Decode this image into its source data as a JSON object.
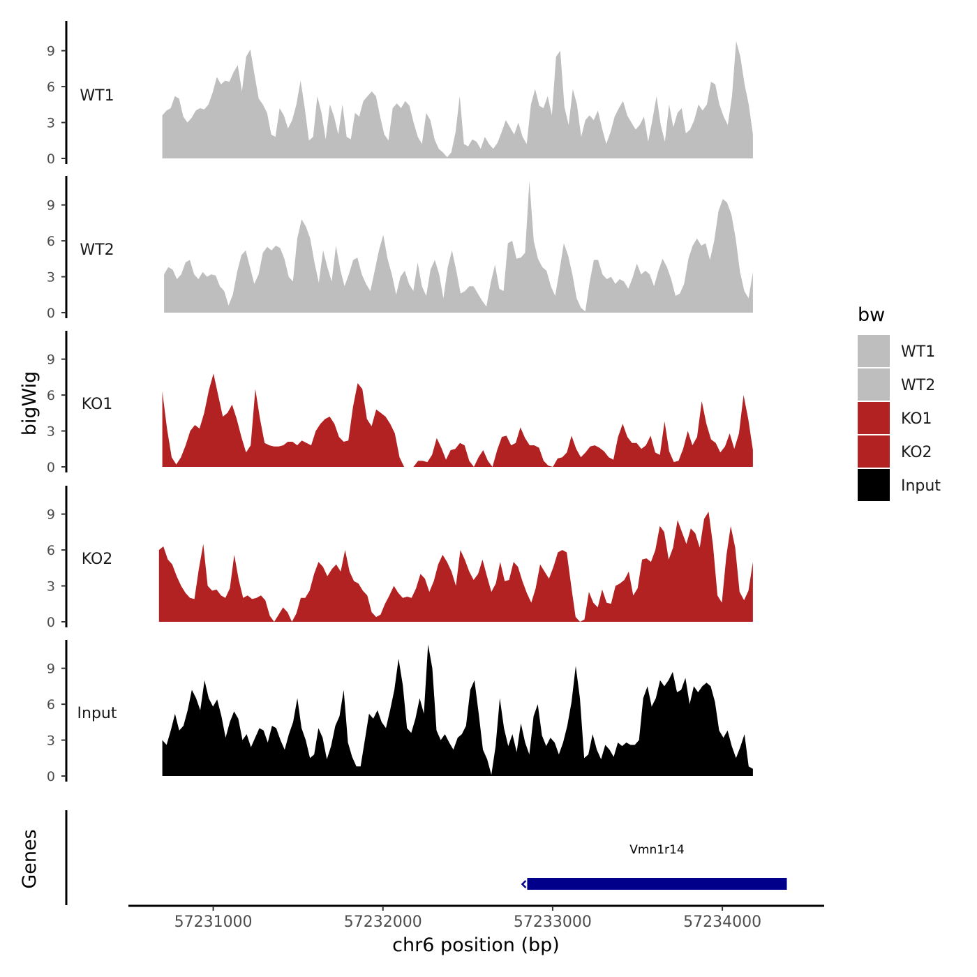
{
  "chart_data": {
    "type": "area",
    "x_title": "chr6 position (bp)",
    "y_title": "bigWig",
    "genes_title": "Genes",
    "xlim": [
      57230500,
      57234600
    ],
    "ylim": [
      0,
      11.5
    ],
    "y_ticks": [
      0,
      3,
      6,
      9
    ],
    "x_ticks": [
      {
        "value": 57231000,
        "label": "57231000"
      },
      {
        "value": 57232000,
        "label": "57232000"
      },
      {
        "value": 57233000,
        "label": "57233000"
      },
      {
        "value": 57234000,
        "label": "57234000"
      }
    ],
    "legend": {
      "title": "bw",
      "entries": [
        {
          "label": "WT1",
          "color": "#bebebe"
        },
        {
          "label": "WT2",
          "color": "#bebebe"
        },
        {
          "label": "KO1",
          "color": "#b22222"
        },
        {
          "label": "KO2",
          "color": "#b22222"
        },
        {
          "label": "Input",
          "color": "#000000"
        }
      ]
    },
    "series": [
      {
        "name": "WT1",
        "color": "#bebebe",
        "x_start": 57230700,
        "x_end": 57234180,
        "values": [
          3.6,
          4,
          4.2,
          5.2,
          5,
          3.5,
          3,
          3.4,
          4,
          4.2,
          4.1,
          4.5,
          5.5,
          6.8,
          6.2,
          6.5,
          6.4,
          7.2,
          7.8,
          5.6,
          8.5,
          9.1,
          7,
          5,
          4.5,
          3.8,
          2,
          1.8,
          4.2,
          3.6,
          2.5,
          3.2,
          4.5,
          6.5,
          4.2,
          1.5,
          1.8,
          5.2,
          3.8,
          1.6,
          4.5,
          3.5,
          2,
          4.5,
          1.8,
          1.6,
          3.8,
          3.5,
          4.8,
          5.2,
          5.6,
          5.2,
          3.5,
          2,
          1.5,
          4.2,
          4.6,
          4.2,
          4.8,
          4.4,
          3,
          1.8,
          1.2,
          3.8,
          3.2,
          1.6,
          0.8,
          0.5,
          0.1,
          0.5,
          2.2,
          5.2,
          1.2,
          1,
          1.6,
          1.4,
          0.8,
          1.8,
          1.2,
          0.8,
          1.3,
          2.2,
          3.2,
          2.6,
          2,
          3,
          1.8,
          1.2,
          4.5,
          5.8,
          4.4,
          4.2,
          5.2,
          3.6,
          8.5,
          9,
          4.3,
          2.8,
          5.8,
          4.5,
          1.8,
          3.2,
          3.6,
          3.2,
          4,
          2.5,
          1.2,
          2.2,
          3.5,
          4.2,
          4.8,
          3.6,
          3,
          2.4,
          2.8,
          3.5,
          1.4,
          3.2,
          5.2,
          2.8,
          1.4,
          4.5,
          2.6,
          3.8,
          4.2,
          2.1,
          2.4,
          3.2,
          4.5,
          4,
          4.5,
          6.4,
          6.2,
          4.5,
          3.5,
          2.8,
          5.2,
          9.8,
          8.5,
          6.2,
          4.5,
          2
        ]
      },
      {
        "name": "WT2",
        "color": "#bebebe",
        "x_start": 57230710,
        "x_end": 57234180,
        "values": [
          3.2,
          3.8,
          3.6,
          2.8,
          3.2,
          4.2,
          4.4,
          3.2,
          2.8,
          3.4,
          3,
          3.2,
          3.1,
          2.2,
          1.8,
          0.6,
          1.5,
          3.4,
          4.8,
          5.2,
          3.8,
          2.4,
          3.2,
          5,
          5.5,
          5.2,
          5.6,
          5.4,
          4.5,
          3,
          2.6,
          6.2,
          7.8,
          7.2,
          6.2,
          4.2,
          2.5,
          5.2,
          3.8,
          2.6,
          5.6,
          3.6,
          2.2,
          3.2,
          4.4,
          4.6,
          3.2,
          2.4,
          1.8,
          3.5,
          5.2,
          6.5,
          4.5,
          3.2,
          1.5,
          3,
          3.5,
          2.4,
          1.8,
          4.2,
          2.2,
          1.4,
          3.6,
          4.4,
          3.2,
          1.2,
          3.8,
          5.2,
          3.5,
          1.6,
          1.8,
          2.2,
          2.2,
          1.6,
          1,
          0.5,
          2.5,
          4,
          2,
          1.8,
          5.8,
          6,
          4.5,
          4.6,
          5,
          11,
          6,
          4.5,
          3.8,
          3.5,
          2.2,
          1.4,
          3.5,
          5.8,
          4.8,
          3.2,
          1.2,
          0.4,
          0.1,
          2.5,
          4.4,
          4.4,
          3.2,
          2.8,
          3,
          2.4,
          2.8,
          2.6,
          2,
          2.9,
          4.1,
          3.2,
          3.5,
          3.2,
          2.2,
          3.5,
          4.5,
          3.8,
          2.8,
          1.4,
          1.6,
          2.4,
          4.5,
          5.6,
          6.2,
          5.6,
          5.8,
          4.4,
          6,
          8.5,
          9.5,
          9.2,
          8.2,
          6.2,
          3.4,
          1.8,
          1.2,
          3.4
        ]
      },
      {
        "name": "KO1",
        "color": "#b22222",
        "x_start": 57230700,
        "x_end": 57234180,
        "values": [
          6.3,
          3.2,
          0.8,
          0.2,
          0.8,
          1.8,
          3,
          3.5,
          3.2,
          4.5,
          6.4,
          7.8,
          6,
          4.2,
          4.5,
          5.2,
          4,
          2.5,
          1.2,
          1.8,
          6.5,
          4,
          2,
          1.8,
          1.7,
          1.7,
          1.8,
          2.1,
          2.1,
          1.8,
          2.2,
          2,
          1.8,
          3,
          3.6,
          4,
          4.2,
          3.6,
          2.5,
          2.1,
          2.2,
          5,
          7,
          6.5,
          4,
          3.4,
          4.8,
          4.5,
          4.2,
          3.6,
          2.8,
          0.8,
          0,
          0,
          0,
          0.5,
          0.5,
          0.4,
          1,
          2.4,
          1.6,
          0.6,
          1.4,
          1.5,
          2,
          1.8,
          0.5,
          0,
          0.8,
          1.4,
          0.5,
          0,
          1.4,
          2.5,
          2.6,
          1.8,
          2,
          3.3,
          2.4,
          1.8,
          1.8,
          1.6,
          0.5,
          0.1,
          0,
          0.7,
          0.8,
          1.2,
          2.6,
          1.5,
          0.8,
          1.2,
          1.7,
          1.8,
          1.6,
          1.3,
          0.8,
          0.6,
          2.5,
          3.6,
          2.5,
          2,
          2,
          1.5,
          1.8,
          2.6,
          1.2,
          1,
          3.8,
          1.3,
          0.4,
          0.5,
          1.5,
          3,
          1.8,
          2.5,
          5.5,
          3.6,
          2.3,
          2,
          1.2,
          1.7,
          2.8,
          1.5,
          2.8,
          6,
          4,
          1.4
        ]
      },
      {
        "name": "KO2",
        "color": "#b22222",
        "x_start": 57230680,
        "x_end": 57234180,
        "values": [
          6,
          6.3,
          5.2,
          4.8,
          3.8,
          3,
          2.4,
          2,
          1.9,
          4.4,
          6.5,
          3,
          2.6,
          2.7,
          2.2,
          2,
          2.8,
          5.6,
          3.5,
          2,
          2.2,
          1.9,
          2,
          2.2,
          1.8,
          0.5,
          0,
          0.6,
          1.2,
          0.8,
          0,
          0.7,
          2,
          2,
          2.6,
          4,
          5,
          4.6,
          3.8,
          4.4,
          4.8,
          4.2,
          6,
          4.2,
          3.4,
          3.2,
          2.6,
          2.2,
          0.8,
          0.4,
          0.6,
          1.5,
          2.2,
          3,
          2.4,
          2,
          2.1,
          2,
          2.8,
          4,
          3.6,
          2.5,
          3.4,
          4.8,
          5.6,
          5,
          4.2,
          3,
          6,
          5.2,
          4.2,
          3.5,
          4,
          5.2,
          3.8,
          2.5,
          3.2,
          5,
          3.4,
          3.5,
          5,
          4.6,
          3.4,
          2.4,
          1.6,
          2.8,
          4.8,
          4.2,
          3.6,
          4.6,
          5.8,
          6,
          5.8,
          3,
          0.4,
          0,
          0.2,
          2.5,
          1.6,
          1.2,
          2.7,
          1.6,
          1.5,
          3,
          3.2,
          3.5,
          4.2,
          2.2,
          2.8,
          5.2,
          5.3,
          5,
          6,
          8,
          7.5,
          5.2,
          6.2,
          8.5,
          7.5,
          6.5,
          7.8,
          7.4,
          6.2,
          8.6,
          9.2,
          6.4,
          2.2,
          1.6,
          5.5,
          8,
          6.2,
          2.5,
          1.8,
          2.6,
          5
        ]
      },
      {
        "name": "Input",
        "color": "#000000",
        "x_start": 57230700,
        "x_end": 57234180,
        "values": [
          3,
          2.6,
          3.8,
          5.2,
          3.8,
          4.2,
          5.5,
          7.2,
          6.5,
          5.5,
          8,
          6.5,
          5.8,
          6.4,
          5,
          3.2,
          4.5,
          5.4,
          4.8,
          3,
          3.5,
          2.4,
          3.2,
          4,
          3.8,
          2.8,
          4.2,
          4,
          3,
          2.2,
          3.5,
          4.5,
          6.5,
          4,
          3,
          1.5,
          1.8,
          4,
          3.2,
          1.4,
          2.5,
          4.2,
          5,
          7.2,
          2.8,
          1.6,
          0.8,
          0.8,
          3,
          5.2,
          4.8,
          5.5,
          4.5,
          4,
          5.5,
          7.2,
          9.8,
          7.6,
          4,
          3.6,
          4.8,
          6.5,
          5.2,
          11,
          9,
          3.8,
          3,
          3.5,
          2.8,
          2.2,
          3.2,
          3.5,
          4.2,
          7.2,
          8,
          5.2,
          2.2,
          1.4,
          0.1,
          2.5,
          6.5,
          4,
          2.5,
          3.5,
          2,
          4.4,
          2.8,
          1.8,
          5,
          6,
          3.4,
          2.5,
          3.2,
          2.8,
          1.8,
          2.8,
          4.2,
          6.2,
          9.2,
          6.5,
          1.5,
          1.8,
          3.5,
          2.2,
          1.4,
          2.6,
          2.2,
          1.6,
          2.8,
          2.5,
          2.8,
          2.6,
          2.6,
          3,
          6.5,
          7.5,
          5.8,
          6.5,
          8,
          7.5,
          8,
          8.7,
          7,
          7.2,
          8.2,
          6,
          7.5,
          7,
          7.5,
          7.8,
          7.5,
          6.2,
          3.8,
          3.2,
          3.8,
          2.5,
          1.5,
          2.4,
          3.5,
          0.8,
          0.6
        ]
      }
    ],
    "gene": {
      "name": "Vmn1r14",
      "x_start": 57232850,
      "x_end": 57234380,
      "color": "#00008b",
      "strand": "-"
    }
  }
}
